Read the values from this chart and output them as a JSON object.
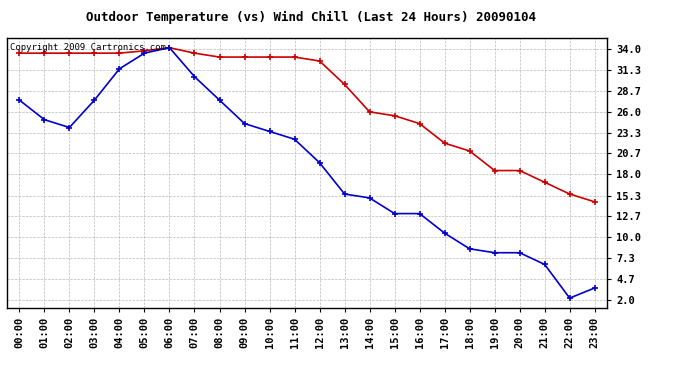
{
  "title": "Outdoor Temperature (vs) Wind Chill (Last 24 Hours) 20090104",
  "copyright_text": "Copyright 2009 Cartronics.com",
  "hours": [
    "00:00",
    "01:00",
    "02:00",
    "03:00",
    "04:00",
    "05:00",
    "06:00",
    "07:00",
    "08:00",
    "09:00",
    "10:00",
    "11:00",
    "12:00",
    "13:00",
    "14:00",
    "15:00",
    "16:00",
    "17:00",
    "18:00",
    "19:00",
    "20:00",
    "21:00",
    "22:00",
    "23:00"
  ],
  "temp": [
    33.5,
    33.5,
    33.5,
    33.5,
    33.5,
    33.8,
    34.2,
    33.5,
    33.0,
    33.0,
    33.0,
    33.0,
    32.5,
    29.5,
    26.0,
    25.5,
    24.5,
    22.0,
    21.0,
    18.5,
    18.5,
    17.0,
    15.5,
    14.5
  ],
  "wind_chill": [
    27.5,
    25.0,
    24.0,
    27.5,
    31.5,
    33.5,
    34.2,
    30.5,
    27.5,
    24.5,
    23.5,
    22.5,
    19.5,
    15.5,
    15.0,
    13.0,
    13.0,
    10.5,
    8.5,
    8.0,
    8.0,
    6.5,
    2.2,
    3.5
  ],
  "temp_color": "#cc0000",
  "wind_chill_color": "#0000cc",
  "yticks": [
    2.0,
    4.7,
    7.3,
    10.0,
    12.7,
    15.3,
    18.0,
    20.7,
    23.3,
    26.0,
    28.7,
    31.3,
    34.0
  ],
  "ylim": [
    1.0,
    35.5
  ],
  "background_color": "#ffffff",
  "grid_color": "#aaaaaa",
  "title_fontsize": 9,
  "tick_fontsize": 7.5,
  "copyright_fontsize": 6.5
}
